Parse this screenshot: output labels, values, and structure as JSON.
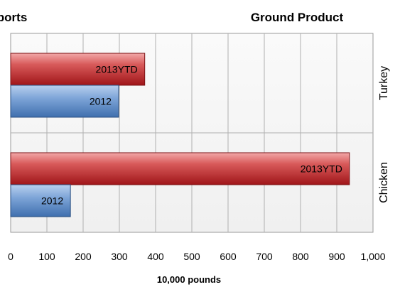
{
  "chart_data": {
    "type": "bar",
    "orientation": "horizontal",
    "title_left": "Exports",
    "title_right": "Ground Product",
    "xlabel": "10,000 pounds",
    "xlim": [
      0,
      1000
    ],
    "xticks": [
      "0",
      "100",
      "200",
      "300",
      "400",
      "500",
      "600",
      "700",
      "800",
      "900",
      "1,000"
    ],
    "grid": true,
    "categories": [
      "Turkey",
      "Chicken"
    ],
    "series": [
      {
        "name": "2013YTD",
        "color": "#c0282d",
        "values": [
          370,
          935
        ]
      },
      {
        "name": "2012",
        "color": "#4a7fc1",
        "values": [
          298,
          165
        ]
      }
    ]
  }
}
